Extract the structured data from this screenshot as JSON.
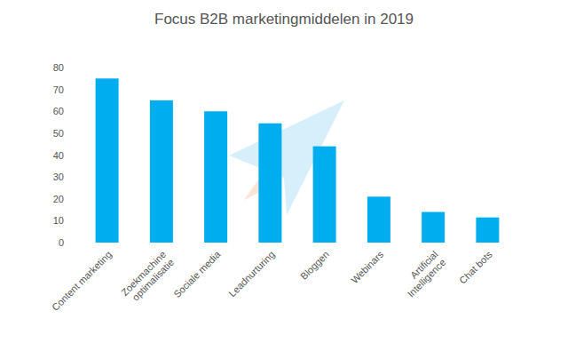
{
  "chart_data": {
    "type": "bar",
    "title": "Focus B2B marketingmiddelen in 2019",
    "categories": [
      "Content marketing",
      "Zoekmachine\noptimalisatie",
      "Sociale media",
      "Leadnurturing",
      "Bloggen",
      "Webinars",
      "Artificial\nIntelligence",
      "Chat bots"
    ],
    "values": [
      75,
      65,
      60,
      54.5,
      44,
      21,
      14,
      11.5
    ],
    "color": "#00aeef",
    "ylim": [
      0,
      80
    ],
    "yticks": [
      0,
      10,
      20,
      30,
      40,
      50,
      60,
      70,
      80
    ],
    "grid": false
  }
}
